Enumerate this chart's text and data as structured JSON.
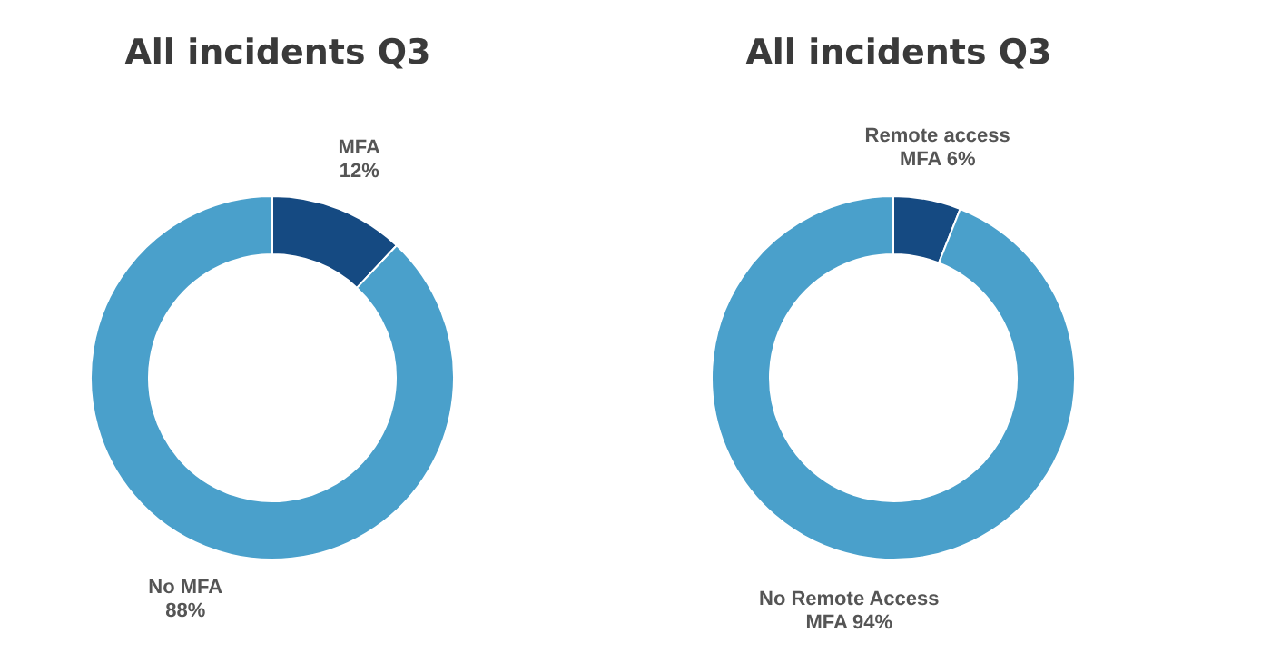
{
  "chart_data": [
    {
      "type": "donut",
      "title": "All incidents Q3",
      "categories": [
        "MFA",
        "No MFA"
      ],
      "values": [
        12,
        88
      ],
      "colors": [
        "#154a82",
        "#4aa0cb"
      ],
      "value_labels": [
        "12%",
        "88%"
      ]
    },
    {
      "type": "donut",
      "title": "All incidents Q3",
      "categories": [
        "Remote access MFA",
        "No Remote Access MFA"
      ],
      "values": [
        6,
        94
      ],
      "colors": [
        "#154a82",
        "#4aa0cb"
      ],
      "value_labels": [
        "6%",
        "94%"
      ]
    }
  ]
}
